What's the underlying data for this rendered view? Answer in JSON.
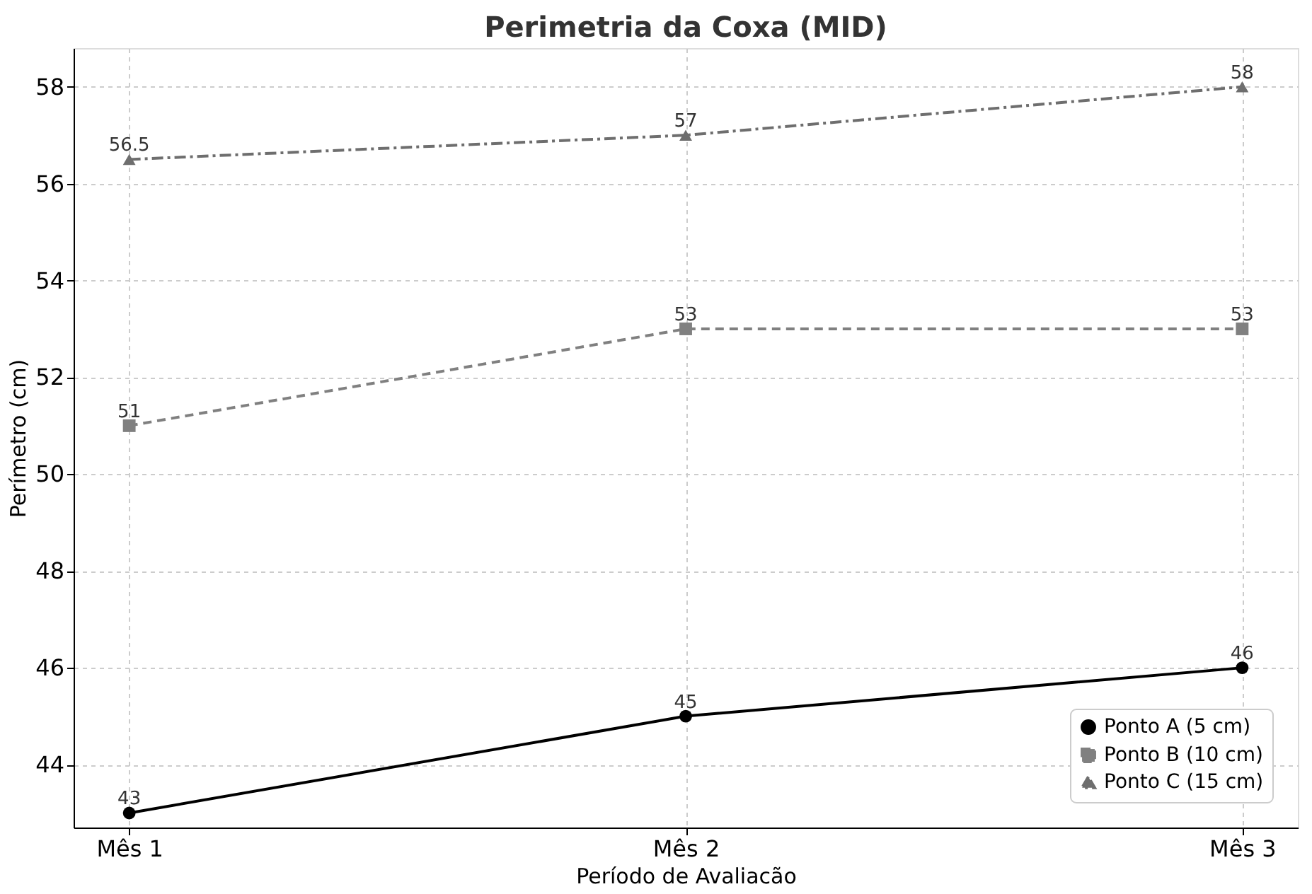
{
  "chart_data": {
    "type": "line",
    "title": "Perimetria da Coxa (MID)",
    "xlabel": "Período de Avaliacão",
    "ylabel": "Perímetro (cm)",
    "categories": [
      "Mês 1",
      "Mês 2",
      "Mês 3"
    ],
    "series": [
      {
        "name": "Ponto A (5 cm)",
        "color": "#000000",
        "values": [
          43,
          45,
          46
        ],
        "marker": "circle",
        "line_style": "solid"
      },
      {
        "name": "Ponto B (10 cm)",
        "color": "#808080",
        "values": [
          51,
          53,
          53
        ],
        "marker": "square",
        "line_style": "dashed"
      },
      {
        "name": "Ponto C (15 cm)",
        "color": "#6e6e6e",
        "values": [
          56.5,
          57,
          58
        ],
        "marker": "triangle",
        "line_style": "dashdot"
      }
    ],
    "ylim": [
      42.7,
      58.8
    ],
    "yticks": [
      44,
      46,
      48,
      50,
      52,
      54,
      56,
      58
    ],
    "grid": true,
    "legend": "bottom right",
    "data_labels": true
  }
}
